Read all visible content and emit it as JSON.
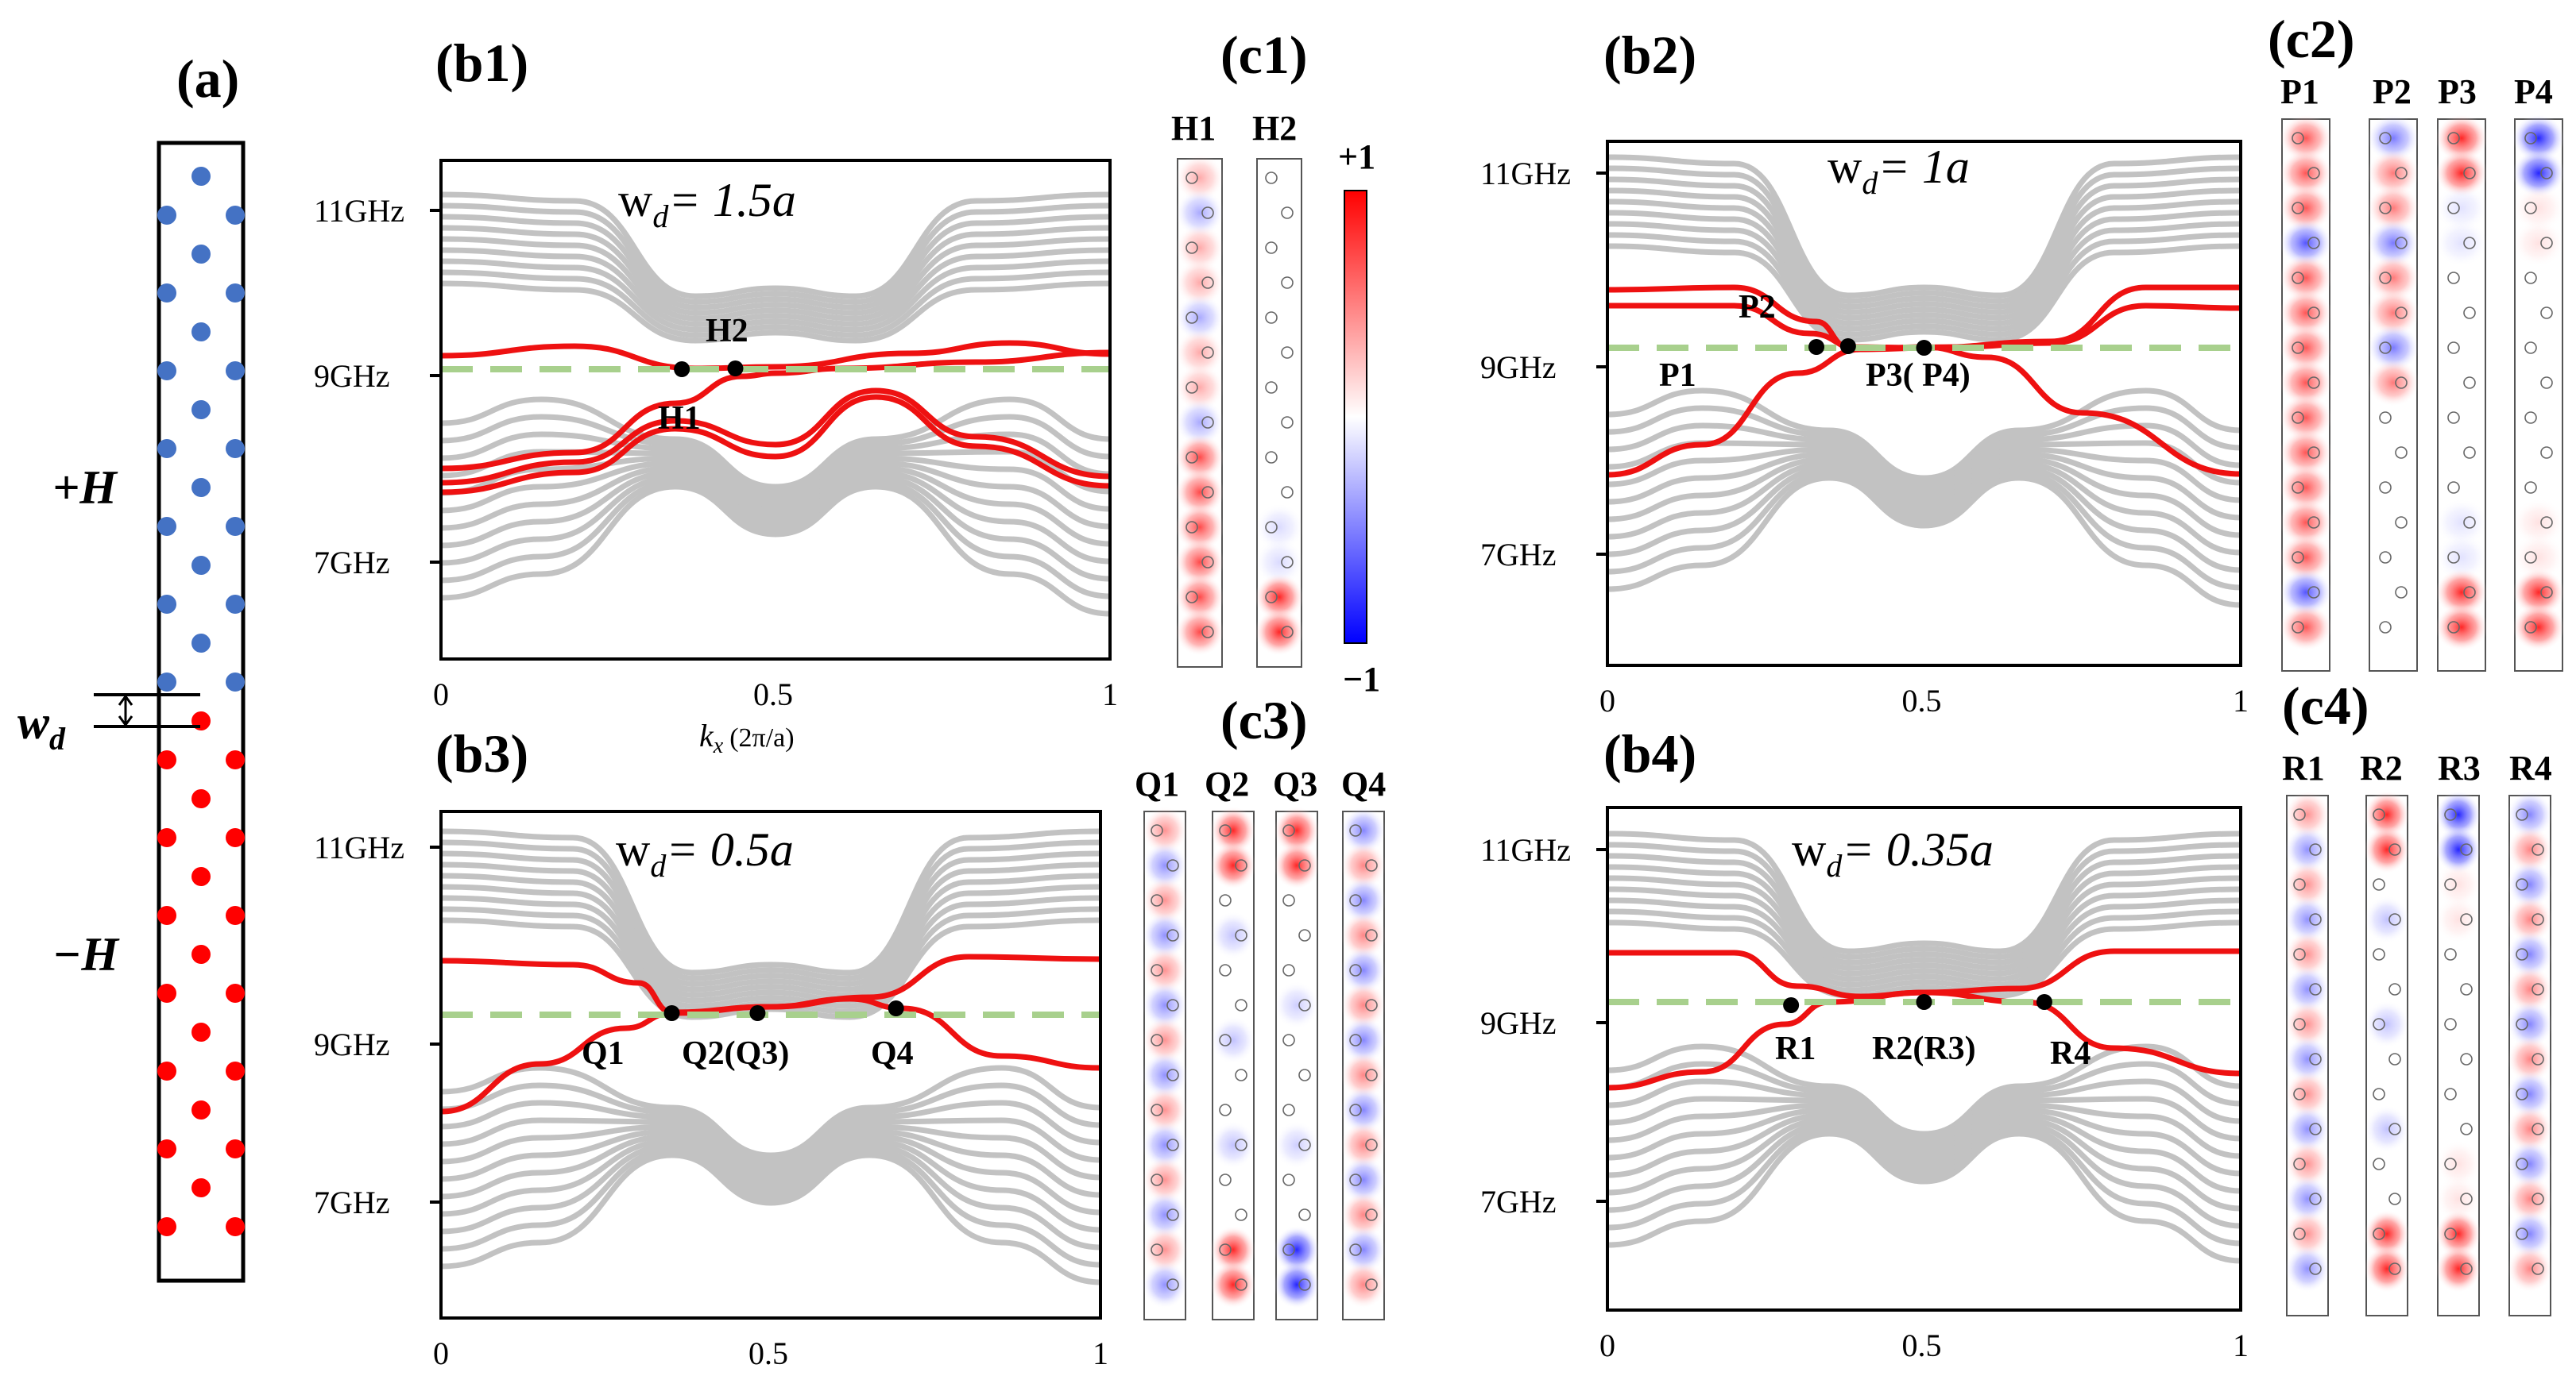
{
  "colors": {
    "grey_band": "#c2c2c2",
    "edge_band": "#ee1111",
    "dashed_line": "#a8d08d",
    "positive_site": "#4472c4",
    "negative_site": "#ff0000",
    "field_positive": "#ff0000",
    "field_negative": "#0000ff"
  },
  "panel_a": {
    "label": "(a)",
    "top_field": "+H",
    "bottom_field": "−H",
    "width_symbol": "w",
    "width_subscript": "d"
  },
  "colorbar": {
    "max_label": "+1",
    "min_label": "−1"
  },
  "panels": [
    {
      "id": "b1",
      "label": "(b1)",
      "width_text": "w",
      "width_sub": "d",
      "width_value": "= 1.5a",
      "frequency_ticks": [
        "11GHz",
        "9GHz",
        "7GHz"
      ],
      "kx_ticks": [
        "0",
        "0.5",
        "1"
      ],
      "xlabel": "k",
      "xlabel_sub": "x",
      "xlabel_unit": "(2π/a)",
      "points": [
        "H1",
        "H2"
      ]
    },
    {
      "id": "b2",
      "label": "(b2)",
      "width_text": "w",
      "width_sub": "d",
      "width_value": "= 1a",
      "frequency_ticks": [
        "11GHz",
        "9GHz",
        "7GHz"
      ],
      "kx_ticks": [
        "0",
        "0.5",
        "1"
      ],
      "points": [
        "P1",
        "P2",
        "P3( P4)"
      ]
    },
    {
      "id": "b3",
      "label": "(b3)",
      "width_text": "w",
      "width_sub": "d",
      "width_value": "= 0.5a",
      "frequency_ticks": [
        "11GHz",
        "9GHz",
        "7GHz"
      ],
      "kx_ticks": [
        "0",
        "0.5",
        "1"
      ],
      "points": [
        "Q1",
        "Q2(Q3)",
        "Q4"
      ]
    },
    {
      "id": "b4",
      "label": "(b4)",
      "width_text": "w",
      "width_sub": "d",
      "width_value": "= 0.35a",
      "frequency_ticks": [
        "11GHz",
        "9GHz",
        "7GHz"
      ],
      "kx_ticks": [
        "0",
        "0.5",
        "1"
      ],
      "points": [
        "R1",
        "R2(R3)",
        "R4"
      ]
    }
  ],
  "field_groups": [
    {
      "id": "c1",
      "label": "(c1)",
      "strips": [
        "H1",
        "H2"
      ]
    },
    {
      "id": "c2",
      "label": "(c2)",
      "strips": [
        "P1",
        "P2",
        "P3",
        "P4"
      ]
    },
    {
      "id": "c3",
      "label": "(c3)",
      "strips": [
        "Q1",
        "Q2",
        "Q3",
        "Q4"
      ]
    },
    {
      "id": "c4",
      "label": "(c4)",
      "strips": [
        "R1",
        "R2",
        "R3",
        "R4"
      ]
    }
  ]
}
